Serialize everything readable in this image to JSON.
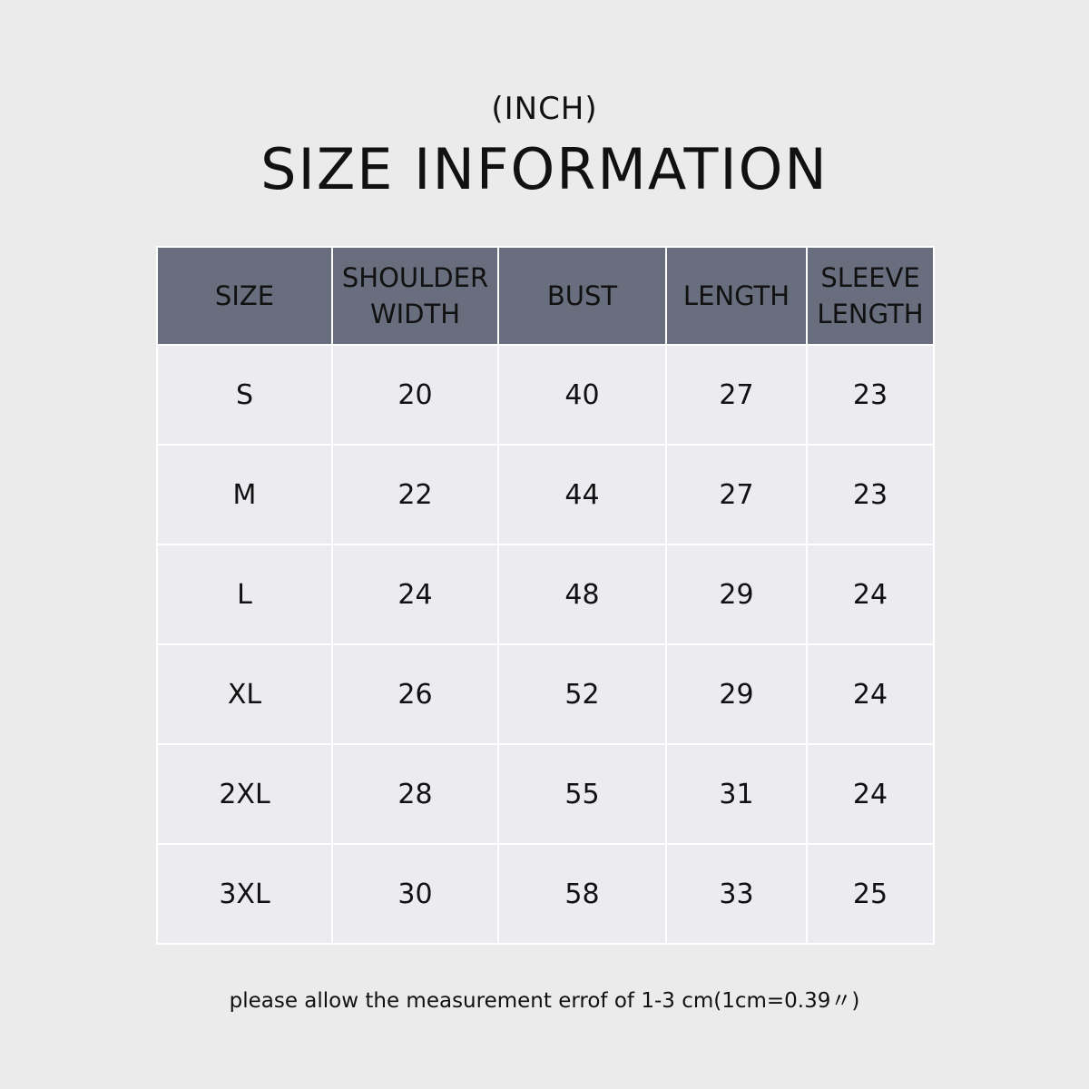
{
  "unit_label": "(INCH)",
  "title": "SIZE INFORMATION",
  "colors": {
    "header_bg": "#696e7e",
    "cell_bg": "#ececf0",
    "page_bg": "#ebebeb"
  },
  "table": {
    "headers": [
      [
        "SIZE"
      ],
      [
        "SHOULDER",
        "WIDTH"
      ],
      [
        "BUST"
      ],
      [
        "LENGTH"
      ],
      [
        "SLEEVE",
        "LENGTH"
      ]
    ],
    "rows": [
      [
        "S",
        "20",
        "40",
        "27",
        "23"
      ],
      [
        "M",
        "22",
        "44",
        "27",
        "23"
      ],
      [
        "L",
        "24",
        "48",
        "29",
        "24"
      ],
      [
        "XL",
        "26",
        "52",
        "29",
        "24"
      ],
      [
        "2XL",
        "28",
        "55",
        "31",
        "24"
      ],
      [
        "3XL",
        "30",
        "58",
        "33",
        "25"
      ]
    ]
  },
  "footnote": "please allow the measurement errof of 1-3 cm(1cm=0.39〃)"
}
